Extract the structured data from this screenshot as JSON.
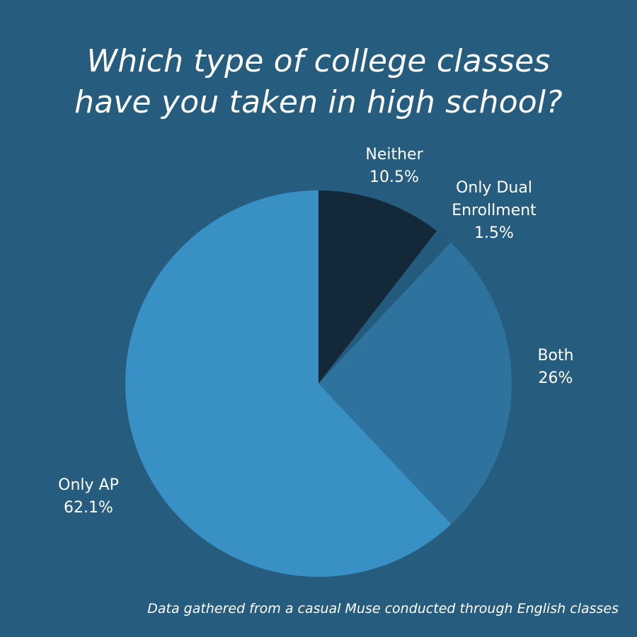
{
  "chart_data": {
    "type": "pie",
    "title_lines": [
      "Which type of college classes",
      "have you taken in high school?"
    ],
    "slices": [
      {
        "name_lines": [
          "Neither"
        ],
        "value": 10.5,
        "value_label": "10.5%",
        "color": "#13293a"
      },
      {
        "name_lines": [
          "Only Dual",
          "Enrollment"
        ],
        "value": 1.5,
        "value_label": "1.5%",
        "color": "#245a7b"
      },
      {
        "name_lines": [
          "Both"
        ],
        "value": 26,
        "value_label": "26%",
        "color": "#2d739e"
      },
      {
        "name_lines": [
          "Only AP"
        ],
        "value": 62.1,
        "value_label": "62.1%",
        "color": "#3890c4"
      }
    ],
    "start_angle_deg": 0,
    "direction": "clockwise"
  },
  "footnote": "Data gathered from a casual Muse conducted through English classes",
  "colors": {
    "background": "#265d7e",
    "text": "#ffffff"
  }
}
